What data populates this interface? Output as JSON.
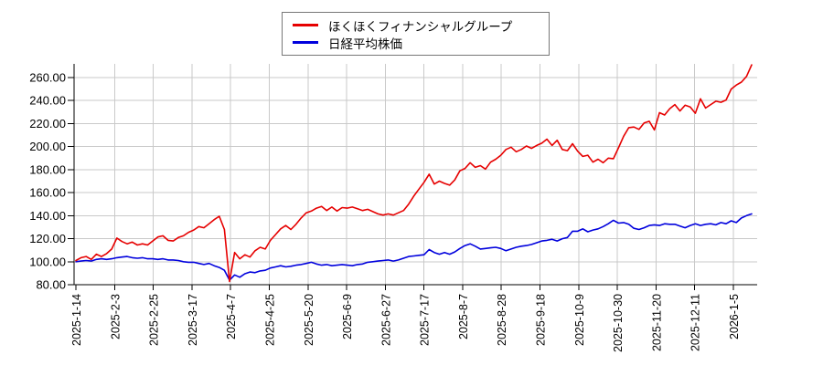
{
  "page": {
    "background": "#ffffff"
  },
  "legend": {
    "position": "top-center",
    "entries": [
      {
        "label": "ほくほくフィナンシャルグループ",
        "color": "#e60000"
      },
      {
        "label": "日経平均株価",
        "color": "#0000dd"
      }
    ]
  },
  "chart_data": {
    "type": "line",
    "title": "",
    "subtitle": "",
    "indexed_base": 100,
    "grid": true,
    "grid_color": "#c9c9c9",
    "axis_color": "#000000",
    "legend_position": "top-center",
    "x_axis": {
      "tick_labels": [
        "2025-1-14",
        "2025-2-3",
        "2025-2-25",
        "2025-3-17",
        "2025-4-7",
        "2025-4-25",
        "2025-5-20",
        "2025-6-9",
        "2025-6-27",
        "2025-7-17",
        "2025-8-7",
        "2025-8-28",
        "2025-9-18",
        "2025-10-9",
        "2025-10-30",
        "2025-11-20",
        "2025-12-11",
        "2026-1-5"
      ]
    },
    "y_axis": {
      "ticks": [
        80,
        100,
        120,
        140,
        160,
        180,
        200,
        220,
        240,
        260
      ],
      "tick_labels": [
        "80.00",
        "100.00",
        "120.00",
        "140.00",
        "160.00",
        "180.00",
        "200.00",
        "220.00",
        "240.00",
        "260.00"
      ],
      "lim": [
        80,
        272
      ]
    },
    "series": [
      {
        "name": "ほくほくフィナンシャルグループ",
        "color": "#e60000",
        "values": [
          101,
          103.5,
          104.5,
          102,
          106.5,
          104.5,
          107,
          111,
          120.5,
          117.5,
          115.5,
          117,
          114.5,
          115.5,
          114.5,
          118,
          121.5,
          122.5,
          118.5,
          118,
          121,
          122.5,
          125.5,
          127.5,
          130.5,
          129.5,
          133,
          136.5,
          139.5,
          128,
          82.8,
          108,
          102.5,
          106,
          104,
          109.5,
          112.5,
          111,
          118.5,
          123.5,
          128.5,
          131.5,
          128,
          132.5,
          138,
          142.5,
          144,
          146.5,
          148,
          144.5,
          147.5,
          144,
          147,
          146.5,
          147.5,
          146,
          144.5,
          145.5,
          143.5,
          141.5,
          140.5,
          141.5,
          140.5,
          142.5,
          144.5,
          150,
          157,
          163,
          169,
          176,
          167.5,
          170,
          168,
          166.5,
          171,
          179,
          181,
          186,
          182,
          183.5,
          180.5,
          186.5,
          189,
          192.5,
          197.5,
          199.5,
          195.5,
          197.5,
          200.5,
          198.5,
          201,
          203,
          206.5,
          201,
          205.5,
          197.5,
          196.5,
          202.5,
          196,
          191.5,
          192.5,
          186.5,
          189,
          186,
          190,
          189.5,
          199,
          209,
          216.5,
          217,
          215,
          220.5,
          222,
          214.5,
          229.5,
          227.5,
          233,
          236.5,
          231,
          236,
          234.5,
          229,
          241.5,
          233.5,
          236.5,
          239.5,
          238.5,
          240.5,
          250,
          253.5,
          256,
          261,
          271
        ]
      },
      {
        "name": "日経平均株価",
        "color": "#0000dd",
        "values": [
          100,
          100.5,
          101,
          100.5,
          102,
          102.5,
          102,
          102.5,
          103.5,
          104,
          104.5,
          103.5,
          103,
          103.5,
          102.5,
          102.5,
          102,
          102.5,
          101.5,
          101.5,
          101,
          100,
          99.5,
          99.5,
          98.5,
          97.5,
          98.5,
          96.5,
          95,
          92.5,
          84,
          88.5,
          86.5,
          89.5,
          91,
          90.5,
          92,
          92.5,
          94.5,
          95.5,
          96.5,
          95.5,
          96,
          97,
          97.5,
          98.5,
          99.5,
          98,
          97,
          97.5,
          96.5,
          97,
          97.5,
          97,
          96.5,
          97.5,
          98,
          99.5,
          100,
          100.5,
          101,
          101.5,
          100.5,
          101.5,
          103,
          104.5,
          105,
          105.5,
          106,
          110.5,
          108,
          106.5,
          108,
          106.5,
          108.5,
          111.5,
          114,
          115.5,
          113.5,
          111,
          111.5,
          112,
          112.5,
          111.5,
          109.5,
          111,
          112.5,
          113.5,
          114,
          115,
          116.5,
          118,
          118.5,
          119.5,
          118,
          120,
          121,
          126.5,
          126.5,
          128.5,
          126,
          127.5,
          128.5,
          130.5,
          133,
          136,
          133.5,
          134,
          132.5,
          129,
          128,
          129.5,
          131.5,
          132,
          131.5,
          133,
          132.5,
          132.5,
          131,
          129.5,
          131.5,
          133,
          131.5,
          132.5,
          133,
          132,
          134,
          133,
          135.5,
          134,
          138,
          140,
          141.5
        ]
      }
    ]
  }
}
